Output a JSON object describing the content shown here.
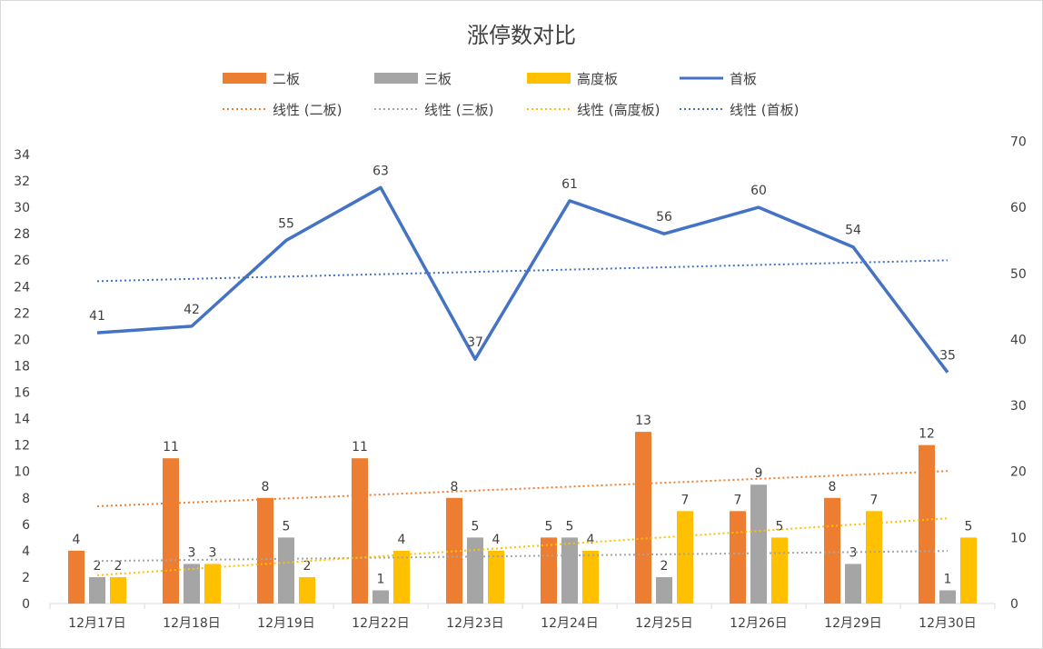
{
  "chart_data": {
    "type": "bar+line",
    "title": "涨停数对比",
    "categories": [
      "12月17日",
      "12月18日",
      "12月19日",
      "12月22日",
      "12月23日",
      "12月24日",
      "12月25日",
      "12月26日",
      "12月29日",
      "12月30日"
    ],
    "series": [
      {
        "name": "二板",
        "type": "bar",
        "axis": "left",
        "color": "#ED7D31",
        "values": [
          4,
          11,
          8,
          11,
          8,
          5,
          13,
          7,
          8,
          12
        ]
      },
      {
        "name": "三板",
        "type": "bar",
        "axis": "left",
        "color": "#A5A5A5",
        "values": [
          2,
          3,
          5,
          1,
          5,
          5,
          2,
          9,
          3,
          1
        ]
      },
      {
        "name": "高度板",
        "type": "bar",
        "axis": "left",
        "color": "#FFC000",
        "values": [
          2,
          3,
          2,
          4,
          4,
          4,
          7,
          5,
          7,
          5
        ]
      },
      {
        "name": "首板",
        "type": "line",
        "axis": "right",
        "color": "#4472C4",
        "values": [
          41,
          42,
          55,
          63,
          37,
          61,
          56,
          60,
          54,
          35
        ]
      }
    ],
    "trendlines": [
      {
        "name": "线性 (二板)",
        "of": "二板",
        "color": "#ED7D31"
      },
      {
        "name": "线性 (三板)",
        "of": "三板",
        "color": "#A5A5A5"
      },
      {
        "name": "线性 (高度板)",
        "of": "高度板",
        "color": "#FFC000"
      },
      {
        "name": "线性 (首板)",
        "of": "首板",
        "color": "#4472C4"
      }
    ],
    "y_left": {
      "min": 0,
      "max": 34,
      "step": 2
    },
    "y_right": {
      "min": 0,
      "max": 70,
      "step": 10
    },
    "legend": "top",
    "grid": false
  }
}
